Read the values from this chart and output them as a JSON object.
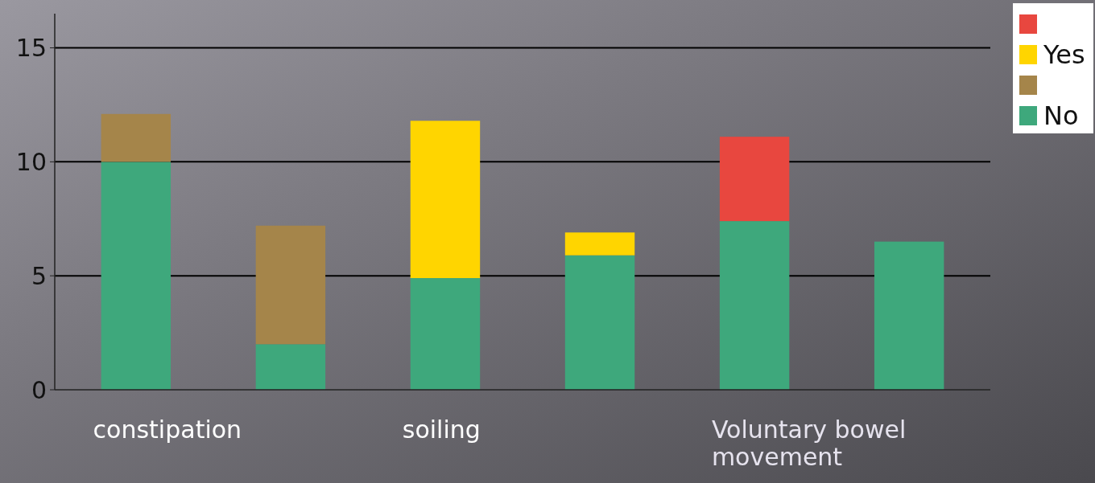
{
  "chart_data": {
    "type": "bar",
    "stacked": true,
    "categories": [
      "constipation",
      null,
      "soiling",
      null,
      "Voluntary bowel movement",
      null
    ],
    "series": [
      {
        "name": "No",
        "color": "#3ea87c",
        "values": [
          10,
          2,
          4.9,
          5.9,
          7.4,
          6.5
        ]
      },
      {
        "color": "#a5854a",
        "values": [
          2.1,
          5.2,
          null,
          null,
          null,
          null
        ]
      },
      {
        "name": "Yes",
        "color": "#ffd500",
        "values": [
          null,
          null,
          6.9,
          1.0,
          null,
          null
        ]
      },
      {
        "color": "#e8473f",
        "values": [
          null,
          null,
          null,
          null,
          3.7,
          null
        ]
      }
    ],
    "ylim": [
      0,
      16.5
    ],
    "yticks": [
      0,
      5,
      10,
      15
    ],
    "grid": "y",
    "legend": "top right"
  }
}
